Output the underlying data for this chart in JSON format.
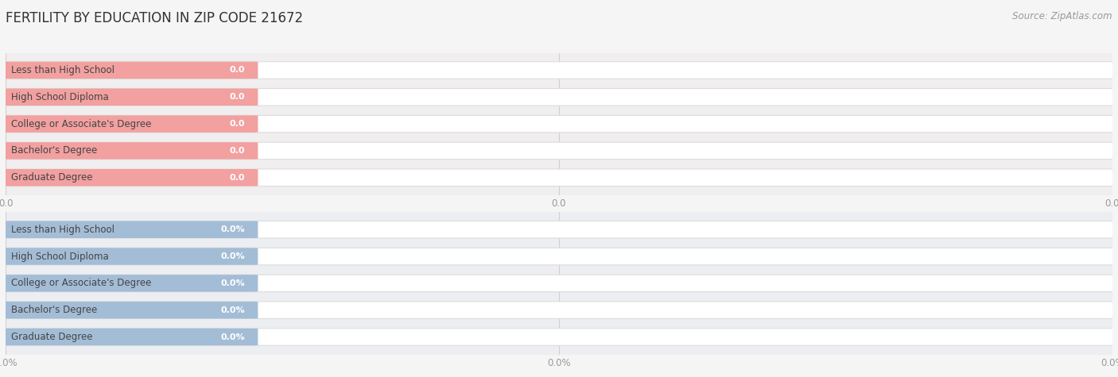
{
  "title": "FERTILITY BY EDUCATION IN ZIP CODE 21672",
  "source": "Source: ZipAtlas.com",
  "categories": [
    "Less than High School",
    "High School Diploma",
    "College or Associate's Degree",
    "Bachelor's Degree",
    "Graduate Degree"
  ],
  "values_top": [
    0.0,
    0.0,
    0.0,
    0.0,
    0.0
  ],
  "values_bottom": [
    0.0,
    0.0,
    0.0,
    0.0,
    0.0
  ],
  "bar_color_top": "#f2a0a0",
  "bar_bg_color_top": "#ffffff",
  "bar_color_bottom": "#a4bdd6",
  "bar_bg_color_bottom": "#ffffff",
  "label_color": "#444444",
  "value_color": "#ffffff",
  "panel_bg_top": "#f0eeee",
  "panel_bg_bottom": "#eceef2",
  "grid_color": "#d0d0d0",
  "title_fontsize": 12,
  "label_fontsize": 8.5,
  "value_fontsize": 8,
  "tick_fontsize": 8.5,
  "source_fontsize": 8.5,
  "tick_color": "#999999",
  "title_color": "#333333",
  "source_color": "#999999"
}
